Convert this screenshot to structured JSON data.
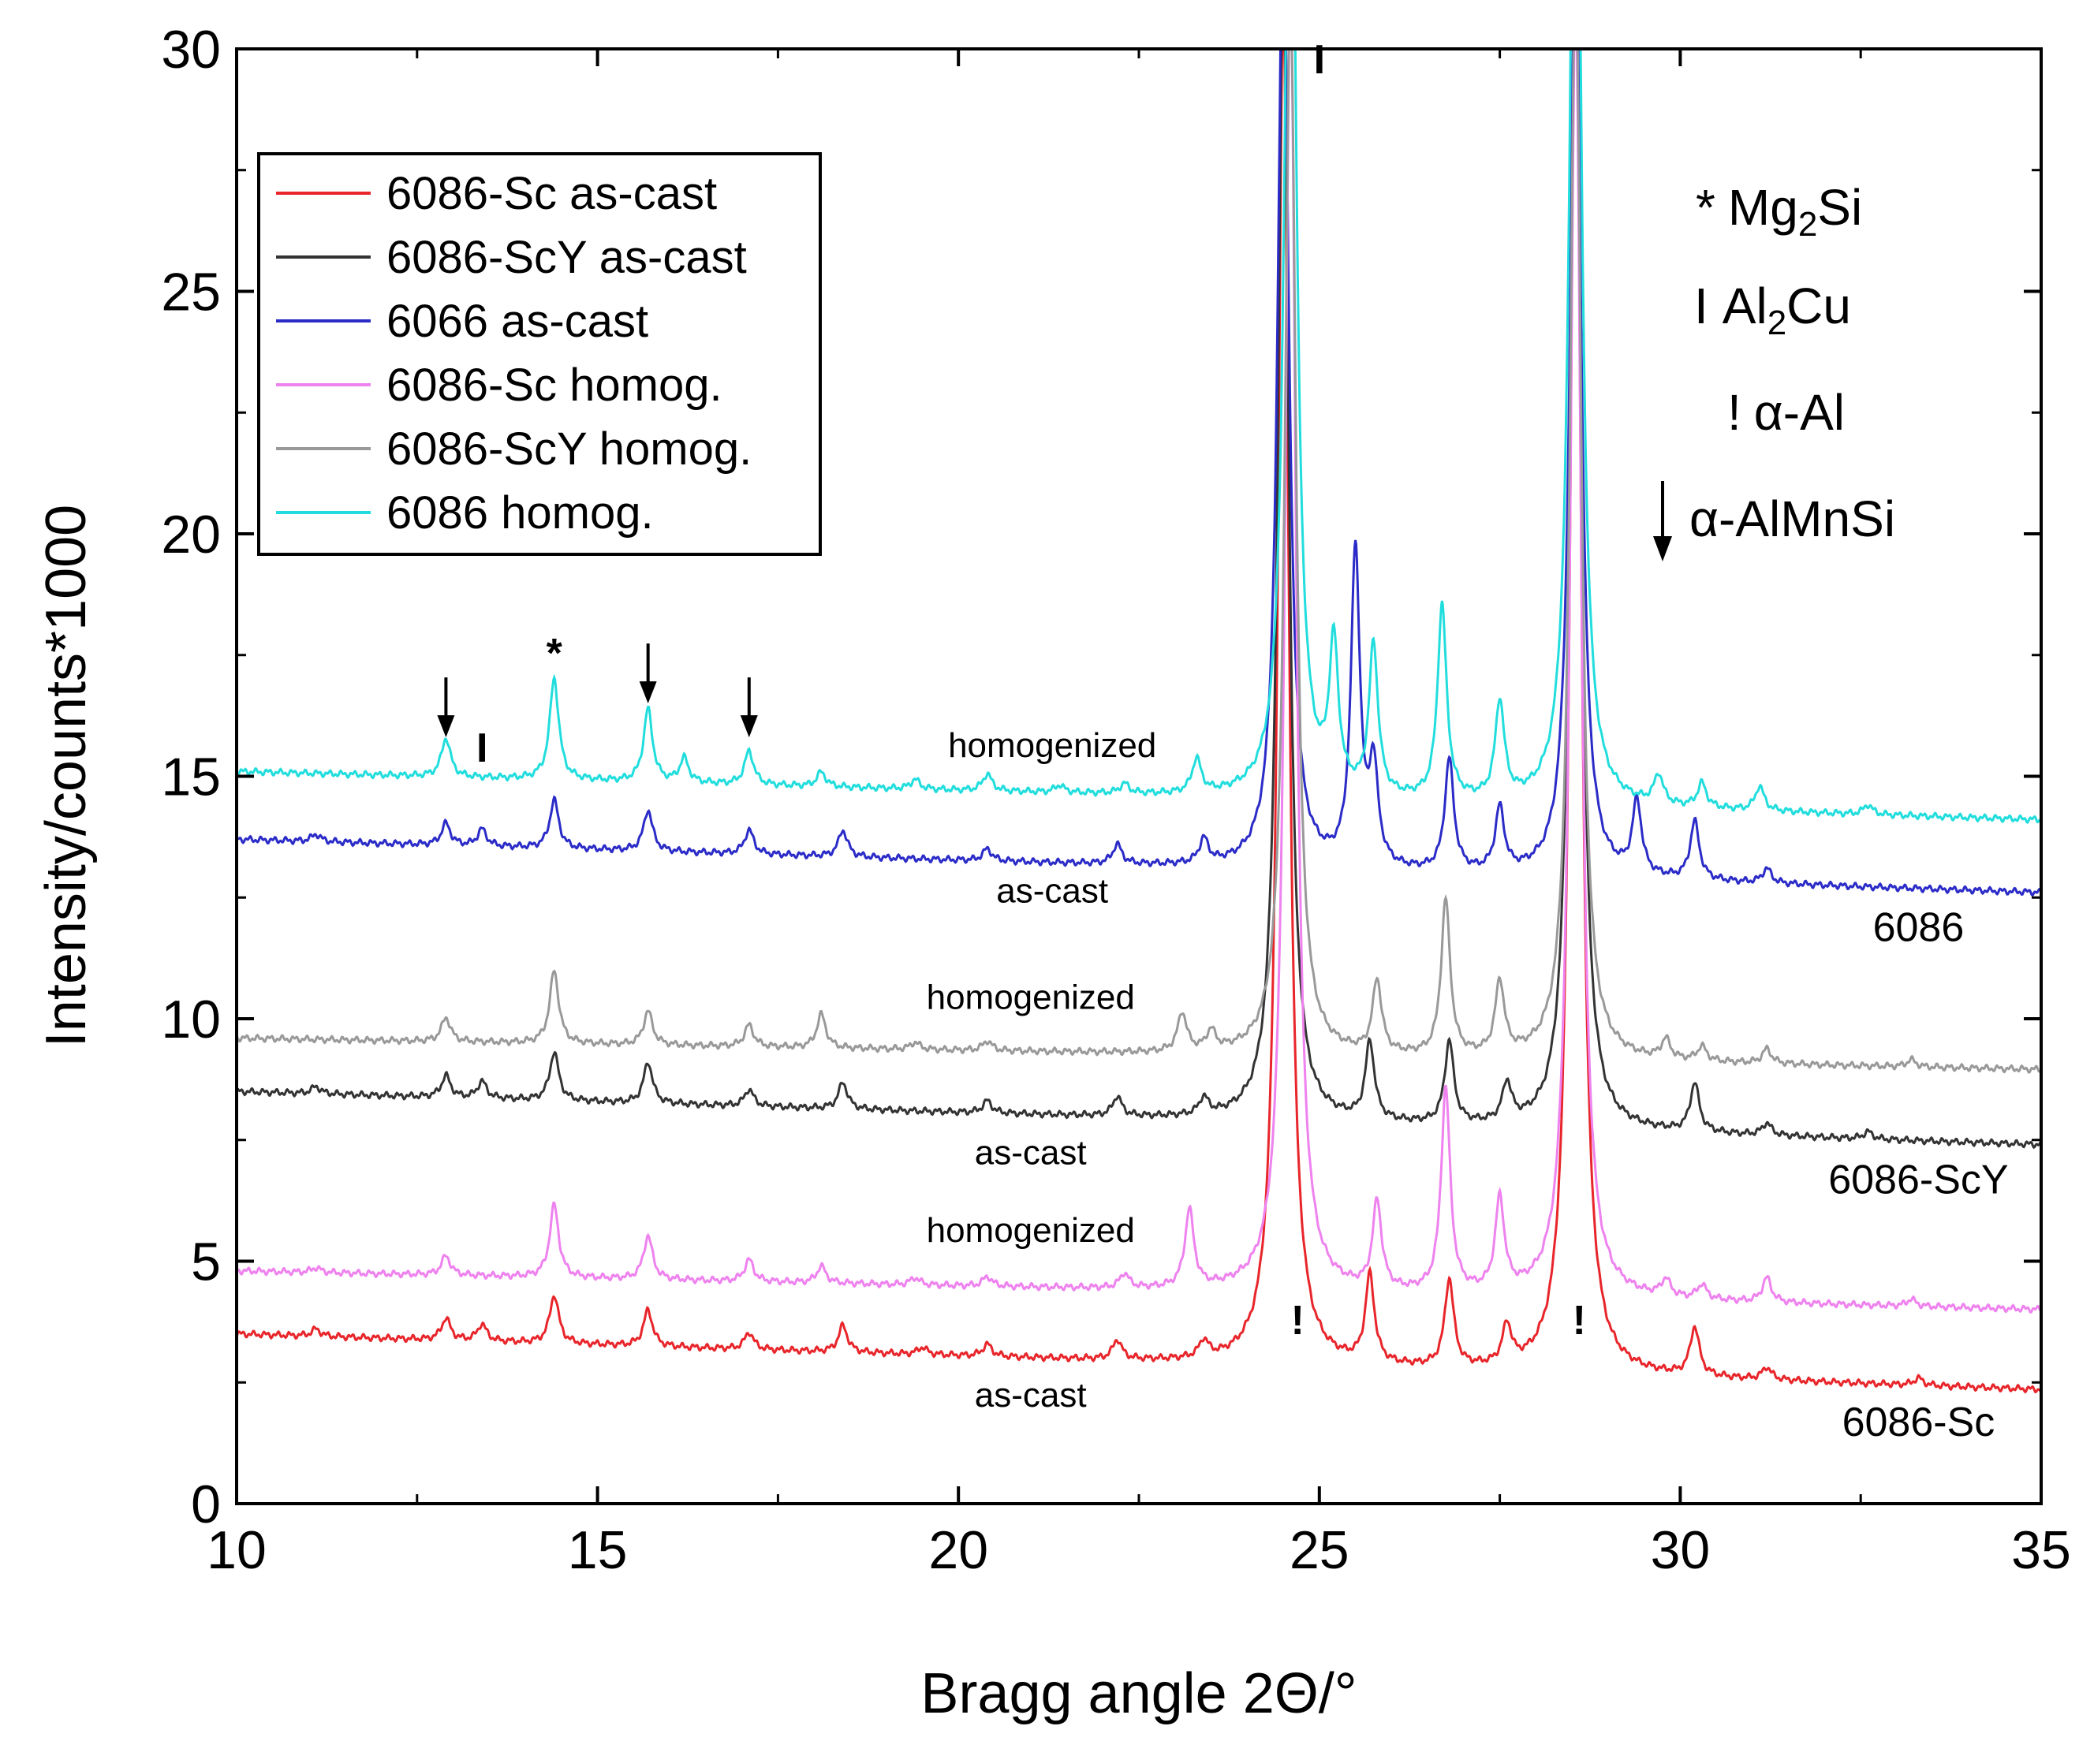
{
  "chart_data": {
    "type": "line",
    "title": "",
    "xlabel": "Bragg angle 2Θ/°",
    "ylabel": "Intensity/counts*1000",
    "xlim": [
      10,
      35
    ],
    "ylim": [
      0,
      30
    ],
    "x_ticks": [
      10,
      15,
      20,
      25,
      30,
      35
    ],
    "y_ticks": [
      0,
      5,
      10,
      15,
      20,
      25,
      30
    ],
    "grid": false,
    "legend_position": "top-left",
    "series": [
      {
        "name": "6086-Sc as-cast",
        "color": "#e8252a",
        "base_start": 3.5,
        "base_end": 2.35,
        "peaks": [
          [
            11.1,
            0.15
          ],
          [
            12.9,
            0.45
          ],
          [
            13.4,
            0.35
          ],
          [
            14.4,
            1.0
          ],
          [
            15.7,
            0.75
          ],
          [
            17.1,
            0.35
          ],
          [
            18.4,
            0.55
          ],
          [
            19.5,
            0.15
          ],
          [
            20.4,
            0.25
          ],
          [
            22.2,
            0.4
          ],
          [
            23.4,
            0.35
          ],
          [
            24.5,
            28
          ],
          [
            25.7,
            1.8
          ],
          [
            26.8,
            1.8
          ],
          [
            27.6,
            0.8
          ],
          [
            28.55,
            30
          ],
          [
            30.2,
            1.0
          ],
          [
            31.2,
            0.25
          ],
          [
            33.3,
            0.15
          ]
        ]
      },
      {
        "name": "6086-ScY as-cast",
        "color": "#333333",
        "base_start": 8.5,
        "base_end": 7.4,
        "peaks": [
          [
            11.1,
            0.15
          ],
          [
            12.9,
            0.45
          ],
          [
            13.4,
            0.35
          ],
          [
            14.4,
            1.0
          ],
          [
            15.7,
            0.85
          ],
          [
            17.1,
            0.35
          ],
          [
            18.4,
            0.55
          ],
          [
            20.4,
            0.25
          ],
          [
            22.2,
            0.4
          ],
          [
            23.4,
            0.35
          ],
          [
            24.5,
            24
          ],
          [
            25.7,
            1.6
          ],
          [
            26.8,
            1.7
          ],
          [
            27.6,
            0.8
          ],
          [
            28.55,
            25
          ],
          [
            30.2,
            1.0
          ],
          [
            31.2,
            0.25
          ],
          [
            32.6,
            0.15
          ]
        ]
      },
      {
        "name": "6066 as-cast",
        "color": "#2b2bc8",
        "base_start": 13.7,
        "base_end": 12.6,
        "peaks": [
          [
            11.1,
            0.15
          ],
          [
            12.9,
            0.45
          ],
          [
            13.4,
            0.35
          ],
          [
            14.4,
            1.0
          ],
          [
            15.7,
            0.85
          ],
          [
            17.1,
            0.5
          ],
          [
            18.4,
            0.55
          ],
          [
            20.4,
            0.25
          ],
          [
            22.2,
            0.4
          ],
          [
            23.4,
            0.5
          ],
          [
            24.5,
            20
          ],
          [
            25.5,
            6.5
          ],
          [
            25.75,
            2.0
          ],
          [
            26.8,
            2.3
          ],
          [
            27.5,
            1.3
          ],
          [
            28.55,
            20
          ],
          [
            29.4,
            1.5
          ],
          [
            30.2,
            1.2
          ],
          [
            31.2,
            0.3
          ]
        ]
      },
      {
        "name": "6086-Sc homog.",
        "color": "#ee82ee",
        "base_start": 4.8,
        "base_end": 4.0,
        "peaks": [
          [
            11.1,
            0.1
          ],
          [
            12.9,
            0.4
          ],
          [
            14.4,
            1.5
          ],
          [
            15.7,
            0.9
          ],
          [
            17.1,
            0.45
          ],
          [
            18.1,
            0.35
          ],
          [
            19.4,
            0.15
          ],
          [
            20.4,
            0.2
          ],
          [
            22.3,
            0.3
          ],
          [
            23.2,
            1.6
          ],
          [
            24.6,
            27
          ],
          [
            25.8,
            1.8
          ],
          [
            26.75,
            4.2
          ],
          [
            27.5,
            1.9
          ],
          [
            28.55,
            27
          ],
          [
            29.8,
            0.35
          ],
          [
            30.3,
            0.3
          ],
          [
            31.2,
            0.5
          ],
          [
            33.2,
            0.15
          ]
        ]
      },
      {
        "name": "6086-ScY homog.",
        "color": "#999999",
        "base_start": 9.6,
        "base_end": 8.95,
        "peaks": [
          [
            12.9,
            0.5
          ],
          [
            14.4,
            1.5
          ],
          [
            15.7,
            0.7
          ],
          [
            17.1,
            0.45
          ],
          [
            18.1,
            0.7
          ],
          [
            19.4,
            0.15
          ],
          [
            20.4,
            0.2
          ],
          [
            23.1,
            0.8
          ],
          [
            23.5,
            0.4
          ],
          [
            24.6,
            22
          ],
          [
            25.8,
            1.5
          ],
          [
            26.75,
            3.2
          ],
          [
            27.5,
            1.5
          ],
          [
            28.55,
            23
          ],
          [
            29.8,
            0.4
          ],
          [
            30.3,
            0.3
          ],
          [
            31.2,
            0.3
          ],
          [
            33.2,
            0.15
          ]
        ]
      },
      {
        "name": "6086 homog.",
        "color": "#22dddd",
        "base_start": 15.1,
        "base_end": 14.1,
        "peaks": [
          [
            12.9,
            0.8
          ],
          [
            14.4,
            2.1
          ],
          [
            15.7,
            1.5
          ],
          [
            16.2,
            0.5
          ],
          [
            17.1,
            0.7
          ],
          [
            18.1,
            0.3
          ],
          [
            19.4,
            0.2
          ],
          [
            20.4,
            0.35
          ],
          [
            21.4,
            0.15
          ],
          [
            22.3,
            0.2
          ],
          [
            23.3,
            0.7
          ],
          [
            24.6,
            24
          ],
          [
            25.2,
            3.0
          ],
          [
            25.75,
            3.1
          ],
          [
            26.7,
            4.0
          ],
          [
            27.5,
            2.0
          ],
          [
            28.55,
            25
          ],
          [
            29.7,
            0.6
          ],
          [
            30.3,
            0.5
          ],
          [
            31.1,
            0.5
          ],
          [
            32.6,
            0.2
          ]
        ]
      }
    ],
    "series_labels": [
      {
        "text": "homogenized",
        "x": 21.3,
        "y": 15.4
      },
      {
        "text": "as-cast",
        "x": 21.3,
        "y": 12.4
      },
      {
        "text": "homogenized",
        "x": 21.0,
        "y": 10.2
      },
      {
        "text": "as-cast",
        "x": 21.0,
        "y": 7.0
      },
      {
        "text": "homogenized",
        "x": 21.0,
        "y": 5.4
      },
      {
        "text": "as-cast",
        "x": 21.0,
        "y": 2.0
      }
    ],
    "alloy_labels": [
      {
        "text": "6086",
        "x": 33.3,
        "y": 11.6
      },
      {
        "text": "6086-ScY",
        "x": 33.3,
        "y": 6.4
      },
      {
        "text": "6086-Sc",
        "x": 33.3,
        "y": 1.4
      }
    ],
    "phase_markers": [
      {
        "symbol": "arrow",
        "x": 12.9,
        "y": 15.9
      },
      {
        "symbol": "I",
        "x": 13.4,
        "y": 15.3
      },
      {
        "symbol": "*",
        "x": 14.4,
        "y": 17.25
      },
      {
        "symbol": "arrow",
        "x": 15.7,
        "y": 16.6
      },
      {
        "symbol": "arrow",
        "x": 17.1,
        "y": 15.9
      },
      {
        "symbol": "!",
        "x": 24.7,
        "y": 3.5
      },
      {
        "symbol": "!",
        "x": 28.6,
        "y": 3.5
      },
      {
        "symbol": "I",
        "x": 25.0,
        "y": 29.5
      }
    ],
    "phase_key": {
      "mg2si": {
        "symbol": "*",
        "name": "Mg",
        "sub": "2",
        "suffix": "Si"
      },
      "al2cu": {
        "symbol": "I",
        "name": "Al",
        "sub": "2",
        "suffix": "Cu"
      },
      "alpha_al": {
        "symbol": "!",
        "name": "α-Al"
      },
      "alpha_almnsi": {
        "symbol": "arrow",
        "name": "α-AlMnSi"
      }
    }
  }
}
